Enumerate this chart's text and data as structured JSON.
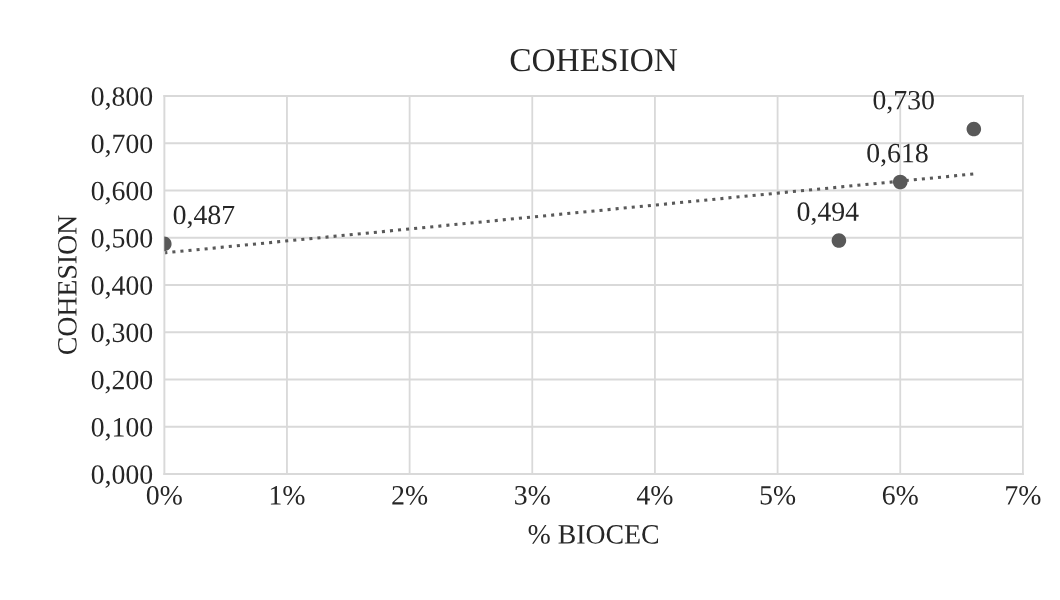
{
  "chart_data": {
    "type": "scatter",
    "title": "COHESION",
    "xlabel": "% BIOCEC",
    "ylabel": "COHESION",
    "xlim": [
      0,
      0.07
    ],
    "xticks": [
      {
        "value": 0,
        "label": "0%"
      },
      {
        "value": 0.01,
        "label": "1%"
      },
      {
        "value": 0.02,
        "label": "2%"
      },
      {
        "value": 0.03,
        "label": "3%"
      },
      {
        "value": 0.04,
        "label": "4%"
      },
      {
        "value": 0.05,
        "label": "5%"
      },
      {
        "value": 0.06,
        "label": "6%"
      },
      {
        "value": 0.07,
        "label": "7%"
      }
    ],
    "ylim": [
      0,
      0.8
    ],
    "yticks": [
      {
        "value": 0,
        "label": "0,000"
      },
      {
        "value": 0.1,
        "label": "0,100"
      },
      {
        "value": 0.2,
        "label": "0,200"
      },
      {
        "value": 0.3,
        "label": "0,300"
      },
      {
        "value": 0.4,
        "label": "0,400"
      },
      {
        "value": 0.5,
        "label": "0,500"
      },
      {
        "value": 0.6,
        "label": "0,600"
      },
      {
        "value": 0.7,
        "label": "0,700"
      },
      {
        "value": 0.8,
        "label": "0,800"
      }
    ],
    "grid": true,
    "series": [
      {
        "marker": "circle",
        "color": "#595959",
        "x": [
          0,
          0.055,
          0.06,
          0.066
        ],
        "values": [
          0.487,
          0.494,
          0.618,
          0.73
        ],
        "value_labels": [
          "0,487",
          "0,494",
          "0,618",
          "0,730"
        ]
      },
      {
        "type": "line",
        "marker": "none",
        "color": "#595959",
        "line_style": "dotted",
        "x": [
          0,
          0.066
        ],
        "values": [
          0.468,
          0.635
        ]
      }
    ]
  }
}
